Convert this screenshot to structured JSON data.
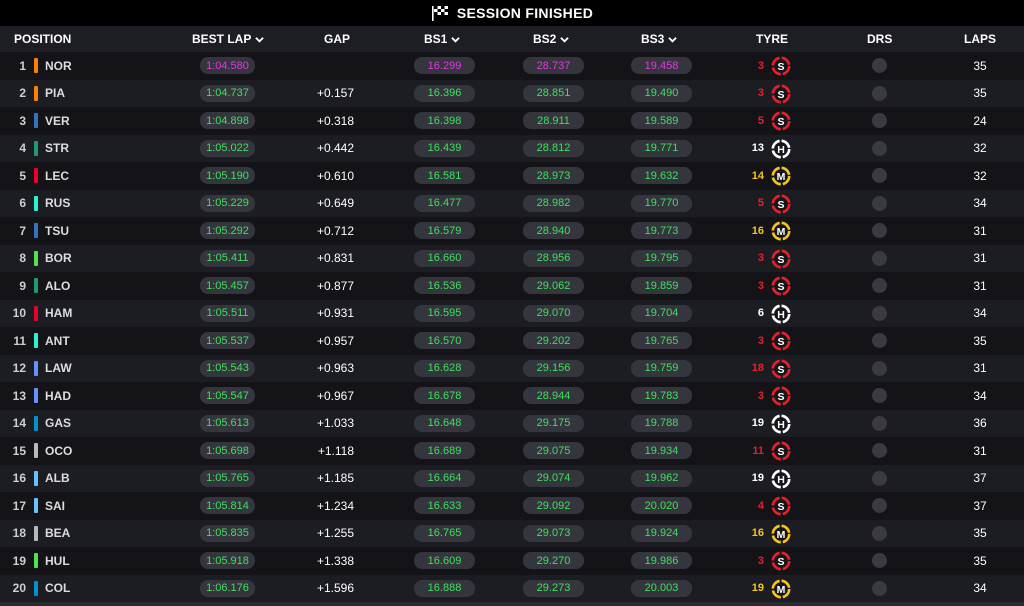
{
  "title": "SESSION FINISHED",
  "columns": {
    "position": "POSITION",
    "best_lap": "BEST LAP",
    "gap": "GAP",
    "bs1": "BS1",
    "bs2": "BS2",
    "bs3": "BS3",
    "tyre": "TYRE",
    "drs": "DRS",
    "laps": "LAPS"
  },
  "colors": {
    "personal_best": "#3ee05c",
    "overall_best": "#e536e5",
    "soft": "#e8202a",
    "medium": "#f5c518",
    "hard": "#ffffff"
  },
  "rows": [
    {
      "pos": "1",
      "code": "NOR",
      "team_color": "#ff8000",
      "best": "1:04.580",
      "best_fastest": true,
      "gap": "",
      "bs1": "16.299",
      "bs1_fastest": true,
      "bs2": "28.737",
      "bs2_fastest": true,
      "bs3": "19.458",
      "bs3_fastest": true,
      "tyre_age": "3",
      "tyre": "S",
      "laps": "35"
    },
    {
      "pos": "2",
      "code": "PIA",
      "team_color": "#ff8000",
      "best": "1:04.737",
      "gap": "+0.157",
      "bs1": "16.396",
      "bs2": "28.851",
      "bs3": "19.490",
      "tyre_age": "3",
      "tyre": "S",
      "laps": "35"
    },
    {
      "pos": "3",
      "code": "VER",
      "team_color": "#3671c6",
      "best": "1:04.898",
      "gap": "+0.318",
      "bs1": "16.398",
      "bs2": "28.911",
      "bs3": "19.589",
      "tyre_age": "5",
      "tyre": "S",
      "laps": "24"
    },
    {
      "pos": "4",
      "code": "STR",
      "team_color": "#229971",
      "best": "1:05.022",
      "gap": "+0.442",
      "bs1": "16.439",
      "bs2": "28.812",
      "bs3": "19.771",
      "tyre_age": "13",
      "tyre": "H",
      "laps": "32"
    },
    {
      "pos": "5",
      "code": "LEC",
      "team_color": "#e8002d",
      "best": "1:05.190",
      "gap": "+0.610",
      "bs1": "16.581",
      "bs2": "28.973",
      "bs3": "19.632",
      "tyre_age": "14",
      "tyre": "M",
      "laps": "32"
    },
    {
      "pos": "6",
      "code": "RUS",
      "team_color": "#27f4d2",
      "best": "1:05.229",
      "gap": "+0.649",
      "bs1": "16.477",
      "bs2": "28.982",
      "bs3": "19.770",
      "tyre_age": "5",
      "tyre": "S",
      "laps": "34"
    },
    {
      "pos": "7",
      "code": "TSU",
      "team_color": "#3671c6",
      "best": "1:05.292",
      "gap": "+0.712",
      "bs1": "16.579",
      "bs2": "28.940",
      "bs3": "19.773",
      "tyre_age": "16",
      "tyre": "M",
      "laps": "31"
    },
    {
      "pos": "8",
      "code": "BOR",
      "team_color": "#52e252",
      "best": "1:05.411",
      "gap": "+0.831",
      "bs1": "16.660",
      "bs2": "28.956",
      "bs3": "19.795",
      "tyre_age": "3",
      "tyre": "S",
      "laps": "31"
    },
    {
      "pos": "9",
      "code": "ALO",
      "team_color": "#229971",
      "best": "1:05.457",
      "gap": "+0.877",
      "bs1": "16.536",
      "bs2": "29.062",
      "bs3": "19.859",
      "tyre_age": "3",
      "tyre": "S",
      "laps": "31"
    },
    {
      "pos": "10",
      "code": "HAM",
      "team_color": "#e8002d",
      "best": "1:05.511",
      "gap": "+0.931",
      "bs1": "16.595",
      "bs2": "29.070",
      "bs3": "19.704",
      "tyre_age": "6",
      "tyre": "H",
      "laps": "34"
    },
    {
      "pos": "11",
      "code": "ANT",
      "team_color": "#27f4d2",
      "best": "1:05.537",
      "gap": "+0.957",
      "bs1": "16.570",
      "bs2": "29.202",
      "bs3": "19.765",
      "tyre_age": "3",
      "tyre": "S",
      "laps": "35"
    },
    {
      "pos": "12",
      "code": "LAW",
      "team_color": "#6692ff",
      "best": "1:05.543",
      "gap": "+0.963",
      "bs1": "16.628",
      "bs2": "29.156",
      "bs3": "19.759",
      "tyre_age": "18",
      "tyre": "S",
      "laps": "31"
    },
    {
      "pos": "13",
      "code": "HAD",
      "team_color": "#6692ff",
      "best": "1:05.547",
      "gap": "+0.967",
      "bs1": "16.678",
      "bs2": "28.944",
      "bs3": "19.783",
      "tyre_age": "3",
      "tyre": "S",
      "laps": "34"
    },
    {
      "pos": "14",
      "code": "GAS",
      "team_color": "#0093cc",
      "best": "1:05.613",
      "gap": "+1.033",
      "bs1": "16.648",
      "bs2": "29.175",
      "bs3": "19.788",
      "tyre_age": "19",
      "tyre": "H",
      "laps": "36"
    },
    {
      "pos": "15",
      "code": "OCO",
      "team_color": "#b6babd",
      "best": "1:05.698",
      "gap": "+1.118",
      "bs1": "16.689",
      "bs2": "29.075",
      "bs3": "19.934",
      "tyre_age": "11",
      "tyre": "S",
      "laps": "31"
    },
    {
      "pos": "16",
      "code": "ALB",
      "team_color": "#64c4ff",
      "best": "1:05.765",
      "gap": "+1.185",
      "bs1": "16.664",
      "bs2": "29.074",
      "bs3": "19.962",
      "tyre_age": "19",
      "tyre": "H",
      "laps": "37"
    },
    {
      "pos": "17",
      "code": "SAI",
      "team_color": "#64c4ff",
      "best": "1:05.814",
      "gap": "+1.234",
      "bs1": "16.633",
      "bs2": "29.092",
      "bs3": "20.020",
      "tyre_age": "4",
      "tyre": "S",
      "laps": "37"
    },
    {
      "pos": "18",
      "code": "BEA",
      "team_color": "#b6babd",
      "best": "1:05.835",
      "gap": "+1.255",
      "bs1": "16.765",
      "bs2": "29.073",
      "bs3": "19.924",
      "tyre_age": "16",
      "tyre": "M",
      "laps": "35"
    },
    {
      "pos": "19",
      "code": "HUL",
      "team_color": "#52e252",
      "best": "1:05.918",
      "gap": "+1.338",
      "bs1": "16.609",
      "bs2": "29.270",
      "bs3": "19.986",
      "tyre_age": "3",
      "tyre": "S",
      "laps": "35"
    },
    {
      "pos": "20",
      "code": "COL",
      "team_color": "#0093cc",
      "best": "1:06.176",
      "gap": "+1.596",
      "bs1": "16.888",
      "bs2": "29.273",
      "bs3": "20.003",
      "tyre_age": "19",
      "tyre": "M",
      "laps": "34"
    }
  ]
}
